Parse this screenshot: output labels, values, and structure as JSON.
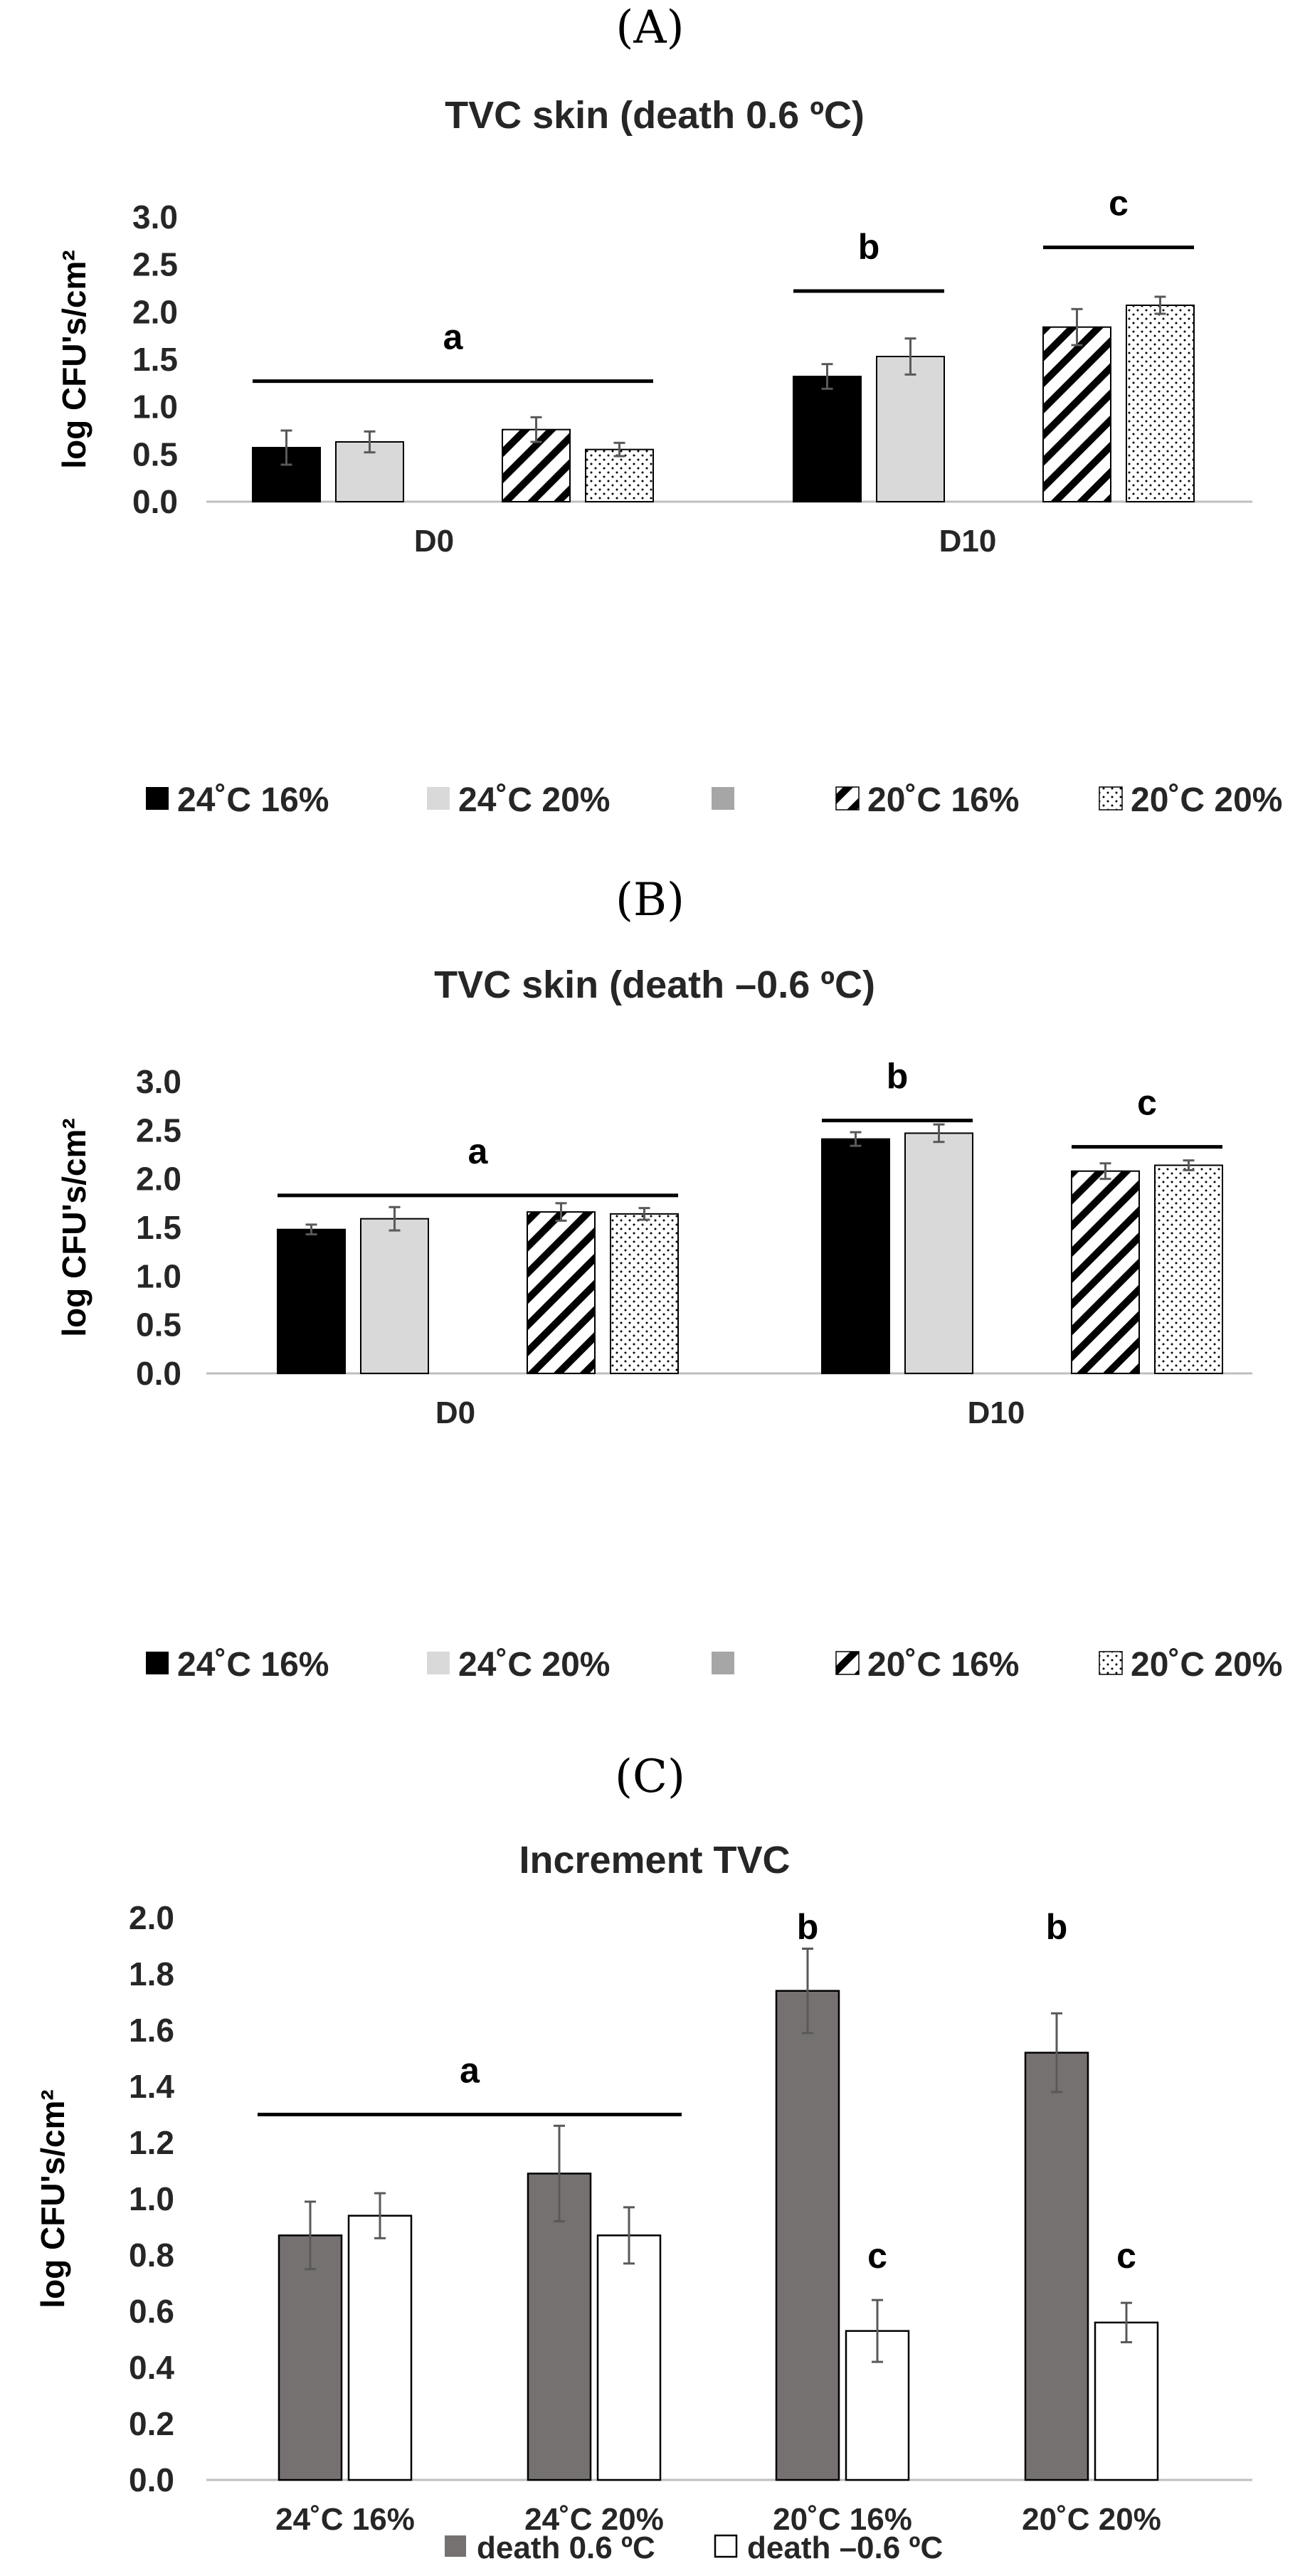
{
  "panels": {
    "a": "(A)",
    "b": "(B)",
    "c": "(C)"
  },
  "colors": {
    "black": "#000000",
    "lightgray": "#d9d9d9",
    "midgray": "#a6a6a6",
    "darkgray": "#767171",
    "white": "#ffffff"
  },
  "chart_data": [
    {
      "type": "bar",
      "title": "TVC skin (death 0.6 ºC)",
      "ylabel": "log CFU's/cm²",
      "ylim": [
        0,
        3.0
      ],
      "yticks": [
        "0.0",
        "0.5",
        "1.0",
        "1.5",
        "2.0",
        "2.5",
        "3.0"
      ],
      "categories": [
        "D0",
        "D10"
      ],
      "legend": [
        "24˚C 16%",
        "24˚C 20%",
        "",
        "20˚C 16%",
        "20˚C 20%"
      ],
      "series": [
        {
          "name": "24˚C 16%",
          "values": [
            0.57,
            1.32
          ],
          "errors": [
            0.18,
            0.13
          ]
        },
        {
          "name": "24˚C 20%",
          "values": [
            0.63,
            1.53
          ],
          "errors": [
            0.11,
            0.19
          ]
        },
        {
          "name": "",
          "values": [
            null,
            null
          ],
          "errors": [
            0,
            0
          ]
        },
        {
          "name": "20˚C 16%",
          "values": [
            0.76,
            1.84
          ],
          "errors": [
            0.13,
            0.19
          ]
        },
        {
          "name": "20˚C 20%",
          "values": [
            0.55,
            2.07
          ],
          "errors": [
            0.07,
            0.09
          ]
        }
      ],
      "annotations": [
        {
          "label": "a",
          "y": 1.27,
          "from": [
            0,
            0
          ],
          "to": [
            0,
            4
          ]
        },
        {
          "label": "b",
          "y": 2.22,
          "from": [
            1,
            0
          ],
          "to": [
            1,
            1
          ]
        },
        {
          "label": "c",
          "y": 2.68,
          "from": [
            1,
            3
          ],
          "to": [
            1,
            4
          ]
        }
      ]
    },
    {
      "type": "bar",
      "title": "TVC skin (death –0.6 ºC)",
      "ylabel": "log CFU's/cm²",
      "ylim": [
        0,
        3.0
      ],
      "yticks": [
        "0.0",
        "0.5",
        "1.0",
        "1.5",
        "2.0",
        "2.5",
        "3.0"
      ],
      "categories": [
        "D0",
        "D10"
      ],
      "legend": [
        "24˚C 16%",
        "24˚C 20%",
        "",
        "20˚C 16%",
        "20˚C 20%"
      ],
      "series": [
        {
          "name": "24˚C 16%",
          "values": [
            1.48,
            2.41
          ],
          "errors": [
            0.05,
            0.07
          ]
        },
        {
          "name": "24˚C 20%",
          "values": [
            1.59,
            2.47
          ],
          "errors": [
            0.12,
            0.09
          ]
        },
        {
          "name": "",
          "values": [
            null,
            null
          ],
          "errors": [
            0,
            0
          ]
        },
        {
          "name": "20˚C 16%",
          "values": [
            1.66,
            2.08
          ],
          "errors": [
            0.09,
            0.08
          ]
        },
        {
          "name": "20˚C 20%",
          "values": [
            1.64,
            2.14
          ],
          "errors": [
            0.06,
            0.05
          ]
        }
      ],
      "annotations": [
        {
          "label": "a",
          "y": 1.83,
          "from": [
            0,
            0
          ],
          "to": [
            0,
            4
          ]
        },
        {
          "label": "b",
          "y": 2.6,
          "from": [
            1,
            0
          ],
          "to": [
            1,
            1
          ]
        },
        {
          "label": "c",
          "y": 2.33,
          "from": [
            1,
            3
          ],
          "to": [
            1,
            4
          ]
        }
      ]
    },
    {
      "type": "bar",
      "title": "Increment TVC",
      "ylabel": "log CFU's/cm²",
      "ylim": [
        0,
        2.0
      ],
      "yticks": [
        "0.0",
        "0.2",
        "0.4",
        "0.6",
        "0.8",
        "1.0",
        "1.2",
        "1.4",
        "1.6",
        "1.8",
        "2.0"
      ],
      "categories": [
        "24˚C 16%",
        "24˚C 20%",
        "20˚C 16%",
        "20˚C 20%"
      ],
      "legend": [
        "death 0.6 ºC",
        "death –0.6 ºC"
      ],
      "series": [
        {
          "name": "death 0.6 ºC",
          "values": [
            0.87,
            1.09,
            1.74,
            1.52
          ],
          "errors": [
            0.12,
            0.17,
            0.15,
            0.14
          ]
        },
        {
          "name": "death –0.6 ºC",
          "values": [
            0.94,
            0.87,
            0.53,
            0.56
          ],
          "errors": [
            0.08,
            0.1,
            0.11,
            0.07
          ]
        }
      ],
      "annotations": [
        {
          "label": "a",
          "y": 1.3,
          "from": [
            0,
            0
          ],
          "to": [
            1,
            1
          ]
        },
        {
          "label": "b",
          "y": 1.95,
          "at": [
            2,
            0
          ]
        },
        {
          "label": "b",
          "y": 1.95,
          "at": [
            3,
            0
          ]
        },
        {
          "label": "c",
          "y": 0.78,
          "at": [
            2,
            1
          ]
        },
        {
          "label": "c",
          "y": 0.78,
          "at": [
            3,
            1
          ]
        }
      ]
    }
  ]
}
